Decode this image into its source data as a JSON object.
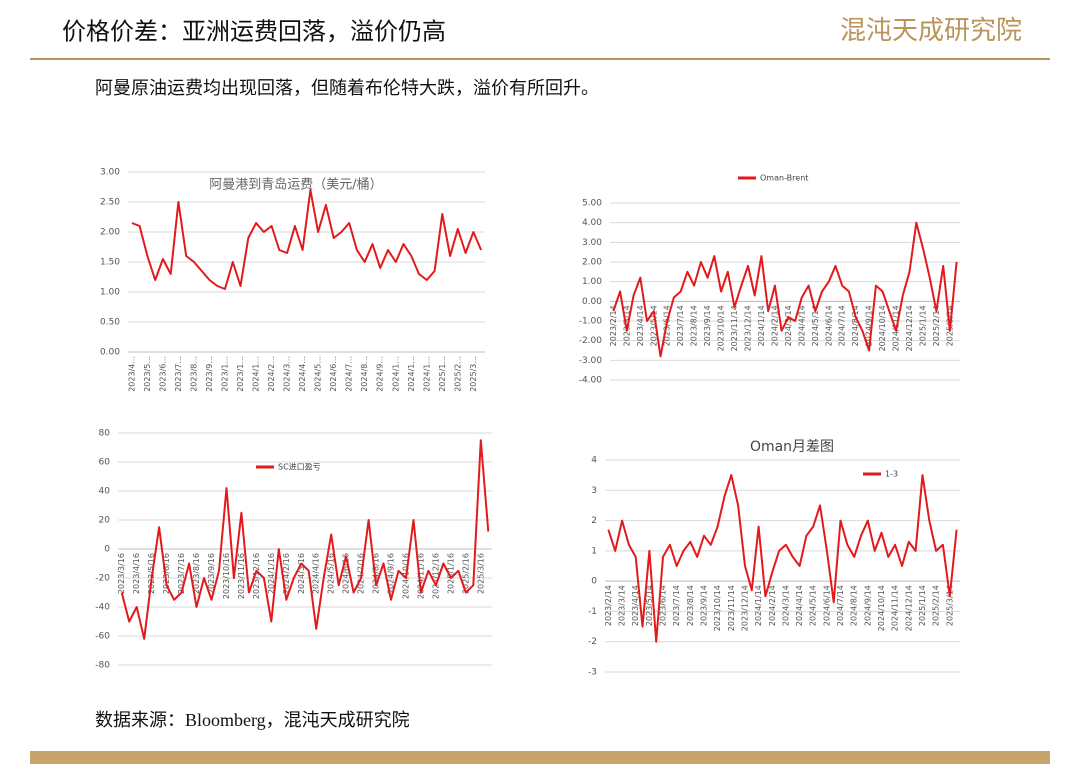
{
  "header": {
    "title": "价格价差：亚洲运费回落，溢价仍高",
    "logo": "混沌天成研究院"
  },
  "subtitle": "阿曼原油运费均出现回落，但随着布伦特大跌，溢价有所回升。",
  "source": "数据来源：Bloomberg，混沌天成研究院",
  "chart_data": [
    {
      "type": "line",
      "title": "阿曼港到青岛运费（美元/桶）",
      "color": "#e31a1c",
      "grid": true,
      "categories": [
        "2023/4...",
        null,
        "2023/5...",
        null,
        "2023/6...",
        null,
        "2023/7...",
        null,
        "2023/8...",
        null,
        "2023/9...",
        null,
        "2023/1...",
        null,
        "2023/1...",
        null,
        "2024/1...",
        null,
        "2024/2...",
        null,
        "2024/3...",
        null,
        "2024/4...",
        null,
        "2024/5...",
        null,
        "2024/6...",
        null,
        "2024/7...",
        null,
        "2024/8...",
        null,
        "2024/9...",
        null,
        "2024/1...",
        null,
        "2024/1...",
        null,
        "2024/1...",
        null,
        "2025/1...",
        null,
        "2025/2...",
        null,
        "2025/3...",
        null
      ],
      "values": [
        2.15,
        2.1,
        1.6,
        1.2,
        1.55,
        1.3,
        2.5,
        1.6,
        1.5,
        1.35,
        1.2,
        1.1,
        1.05,
        1.5,
        1.1,
        1.9,
        2.15,
        2.0,
        2.1,
        1.7,
        1.65,
        2.1,
        1.7,
        2.7,
        2.0,
        2.45,
        1.9,
        2.0,
        2.15,
        1.7,
        1.5,
        1.8,
        1.4,
        1.7,
        1.5,
        1.8,
        1.6,
        1.3,
        1.2,
        1.35,
        2.3,
        1.6,
        2.05,
        1.65,
        2.0,
        1.7
      ],
      "ylim": [
        0,
        3
      ],
      "yticks": [
        {
          "value": 0,
          "label": "0.00"
        },
        {
          "value": 0.5,
          "label": "0.50"
        },
        {
          "value": 1,
          "label": "1.00"
        },
        {
          "value": 1.5,
          "label": "1.50"
        },
        {
          "value": 2,
          "label": "2.00"
        },
        {
          "value": 2.5,
          "label": "2.50"
        },
        {
          "value": 3,
          "label": "3.00"
        }
      ]
    },
    {
      "type": "line",
      "legend": "top",
      "grid": true,
      "categories": [
        "2023/2/14",
        null,
        "2023/3/14",
        null,
        "2023/4/14",
        null,
        "2023/5/14",
        null,
        "2023/6/14",
        null,
        "2023/7/14",
        null,
        "2023/8/14",
        null,
        "2023/9/14",
        null,
        "2023/10/14",
        null,
        "2023/11/14",
        null,
        "2023/12/14",
        null,
        "2024/1/14",
        null,
        "2024/2/14",
        null,
        "2024/3/14",
        null,
        "2024/4/14",
        null,
        "2024/5/14",
        null,
        "2024/6/14",
        null,
        "2024/7/14",
        null,
        "2024/8/14",
        null,
        "2024/9/14",
        null,
        "2024/10/14",
        null,
        "2024/11/14",
        null,
        "2024/12/14",
        null,
        "2025/1/14",
        null,
        "2025/2/14",
        null,
        "2025/3/14",
        null
      ],
      "series": [
        {
          "name": "Oman-Brent",
          "color": "#e31a1c",
          "values": [
            -0.5,
            0.5,
            -1.5,
            0.3,
            1.2,
            -1.0,
            -0.5,
            -2.8,
            -1.0,
            0.2,
            0.5,
            1.5,
            0.8,
            2.0,
            1.2,
            2.3,
            0.5,
            1.5,
            -0.3,
            0.8,
            1.8,
            0.3,
            2.3,
            -0.5,
            0.8,
            -1.5,
            -0.8,
            -1.0,
            0.2,
            0.8,
            -0.5,
            0.5,
            1.0,
            1.8,
            0.8,
            0.5,
            -0.8,
            -1.5,
            -2.5,
            0.8,
            0.5,
            -0.5,
            -1.5,
            0.3,
            1.5,
            4.0,
            2.7,
            1.2,
            -0.5,
            1.8,
            -1.5,
            2.0
          ]
        }
      ],
      "ylim": [
        -4,
        5
      ],
      "yticks": [
        {
          "value": -4,
          "label": "-4.00"
        },
        {
          "value": -3,
          "label": "-3.00"
        },
        {
          "value": -2,
          "label": "-2.00"
        },
        {
          "value": -1,
          "label": "-1.00"
        },
        {
          "value": 0,
          "label": "0.00"
        },
        {
          "value": 1,
          "label": "1.00"
        },
        {
          "value": 2,
          "label": "2.00"
        },
        {
          "value": 3,
          "label": "3.00"
        },
        {
          "value": 4,
          "label": "4.00"
        },
        {
          "value": 5,
          "label": "5.00"
        }
      ]
    },
    {
      "type": "line",
      "legend": "top",
      "grid": true,
      "categories": [
        "2023/3/16",
        null,
        "2023/4/16",
        null,
        "2023/5/16",
        null,
        "2023/6/16",
        null,
        "2023/7/16",
        null,
        "2023/8/16",
        null,
        "2023/9/16",
        null,
        "2023/10/16",
        null,
        "2023/11/16",
        null,
        "2023/12/16",
        null,
        "2024/1/16",
        null,
        "2024/2/16",
        null,
        "2024/3/16",
        null,
        "2024/4/16",
        null,
        "2024/5/16",
        null,
        "2024/6/16",
        null,
        "2024/7/16",
        null,
        "2024/8/16",
        null,
        "2024/9/16",
        null,
        "2024/10/16",
        null,
        "2024/11/16",
        null,
        "2024/12/16",
        null,
        "2025/1/16",
        null,
        "2025/2/16",
        null,
        "2025/3/16",
        null
      ],
      "series": [
        {
          "name": "SC进口盈亏",
          "color": "#e31a1c",
          "values": [
            -30,
            -50,
            -40,
            -62,
            -20,
            15,
            -25,
            -35,
            -30,
            -10,
            -40,
            -20,
            -35,
            -15,
            42,
            -20,
            25,
            -30,
            -15,
            -20,
            -50,
            0,
            -35,
            -20,
            -10,
            -15,
            -55,
            -20,
            10,
            -25,
            -5,
            -30,
            -20,
            20,
            -25,
            -10,
            -35,
            -15,
            -20,
            20,
            -30,
            -15,
            -25,
            -10,
            -20,
            -15,
            -30,
            -25,
            75,
            12
          ]
        }
      ],
      "ylim": [
        -80,
        80
      ],
      "yticks": [
        -80,
        -60,
        -40,
        -20,
        0,
        20,
        40,
        60,
        80
      ]
    },
    {
      "type": "line",
      "title": "Oman月差图",
      "legend": "top-right",
      "grid": true,
      "categories": [
        "2023/2/14",
        null,
        "2023/3/14",
        null,
        "2023/4/14",
        null,
        "2023/5/14",
        null,
        "2023/6/14",
        null,
        "2023/7/14",
        null,
        "2023/8/14",
        null,
        "2023/9/14",
        null,
        "2023/10/14",
        null,
        "2023/11/14",
        null,
        "2023/12/14",
        null,
        "2024/1/14",
        null,
        "2024/2/14",
        null,
        "2024/3/14",
        null,
        "2024/4/14",
        null,
        "2024/5/14",
        null,
        "2024/6/14",
        null,
        "2024/7/14",
        null,
        "2024/8/14",
        null,
        "2024/9/14",
        null,
        "2024/10/14",
        null,
        "2024/11/14",
        null,
        "2024/12/14",
        null,
        "2025/1/14",
        null,
        "2025/2/14",
        null,
        "2025/3/14",
        null
      ],
      "series": [
        {
          "name": "1-3",
          "color": "#e31a1c",
          "values": [
            1.7,
            1.0,
            2.0,
            1.2,
            0.8,
            -1.5,
            1.0,
            -2.0,
            0.8,
            1.2,
            0.5,
            1.0,
            1.3,
            0.8,
            1.5,
            1.2,
            1.8,
            2.8,
            3.5,
            2.5,
            0.5,
            -0.3,
            1.8,
            -0.5,
            0.3,
            1.0,
            1.2,
            0.8,
            0.5,
            1.5,
            1.8,
            2.5,
            1.0,
            -0.7,
            2.0,
            1.2,
            0.8,
            1.5,
            2.0,
            1.0,
            1.6,
            0.8,
            1.2,
            0.5,
            1.3,
            1.0,
            3.5,
            2.0,
            1.0,
            1.2,
            -0.5,
            1.7
          ]
        }
      ],
      "ylim": [
        -3,
        4
      ],
      "yticks": [
        -3,
        -2,
        -1,
        0,
        1,
        2,
        3,
        4
      ]
    }
  ]
}
